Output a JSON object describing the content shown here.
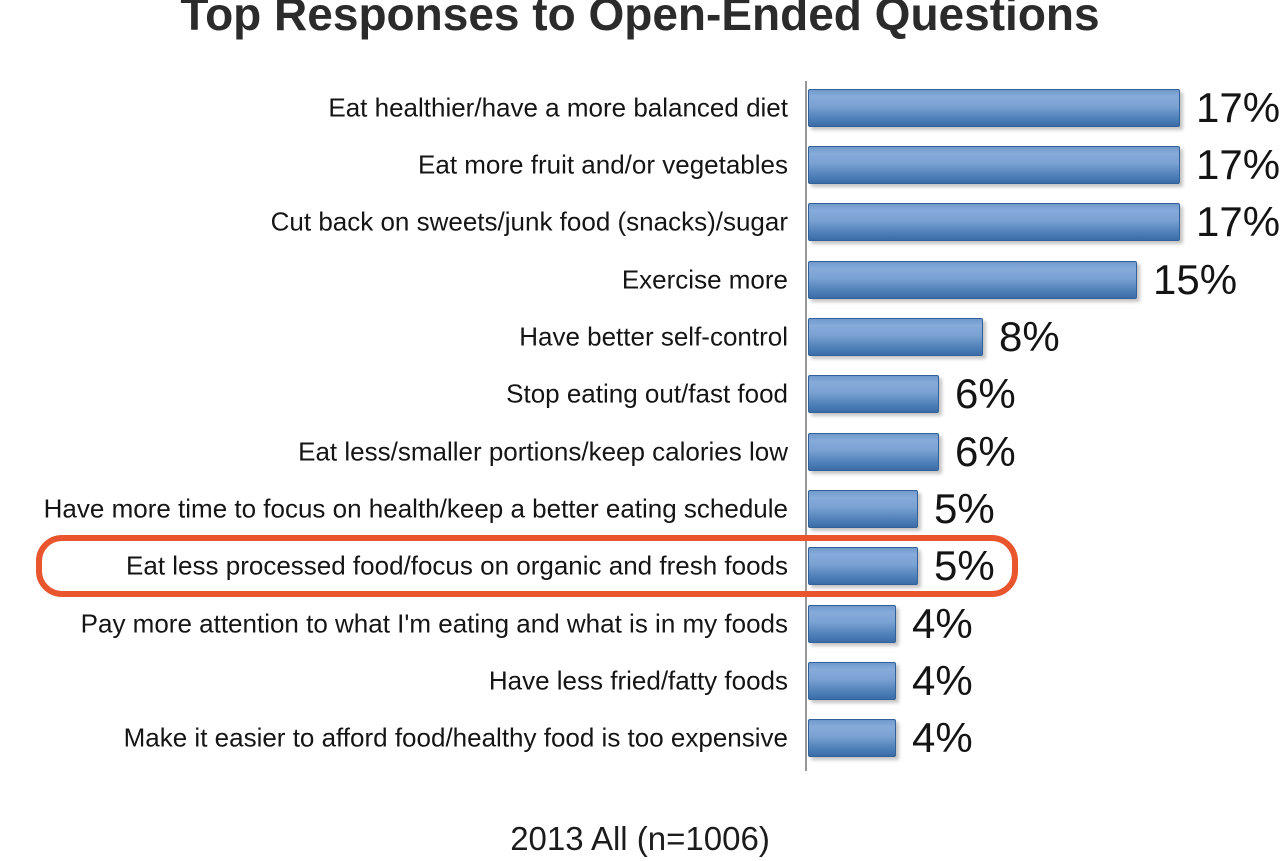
{
  "title": "Top Responses to Open-Ended Questions",
  "footer": "2013 All (n=1006)",
  "colors": {
    "bar_base": "#5b88c0",
    "bar_border": "#31619a",
    "highlight_outline": "#e9552d",
    "axis_line": "#979797",
    "text": "#1c1c1c"
  },
  "chart_data": {
    "type": "bar",
    "orientation": "horizontal",
    "title": "Top Responses to Open-Ended Questions",
    "xlabel": "",
    "ylabel": "",
    "xlim": [
      0,
      18
    ],
    "grid": false,
    "legend": false,
    "categories": [
      "Eat healthier/have a more balanced diet",
      "Eat more fruit and/or vegetables",
      "Cut back on sweets/junk food (snacks)/sugar",
      "Exercise more",
      "Have better self-control",
      "Stop eating out/fast food",
      "Eat less/smaller portions/keep calories low",
      "Have more time to focus on health/keep a better eating schedule",
      "Eat less processed food/focus on organic and fresh foods",
      "Pay more attention to what I'm eating and what is in my foods",
      "Have less fried/fatty foods",
      "Make it easier to afford food/healthy food is too expensive"
    ],
    "values": [
      17,
      17,
      17,
      15,
      8,
      6,
      6,
      5,
      5,
      4,
      4,
      4
    ],
    "value_labels": [
      "17%",
      "17%",
      "17%",
      "15%",
      "8%",
      "6%",
      "6%",
      "5%",
      "5%",
      "4%",
      "4%",
      "4%"
    ],
    "highlight_index": 8,
    "highlighted_category": "Eat less processed food/focus on organic and fresh foods",
    "annotation": "2013 All (n=1006)"
  }
}
